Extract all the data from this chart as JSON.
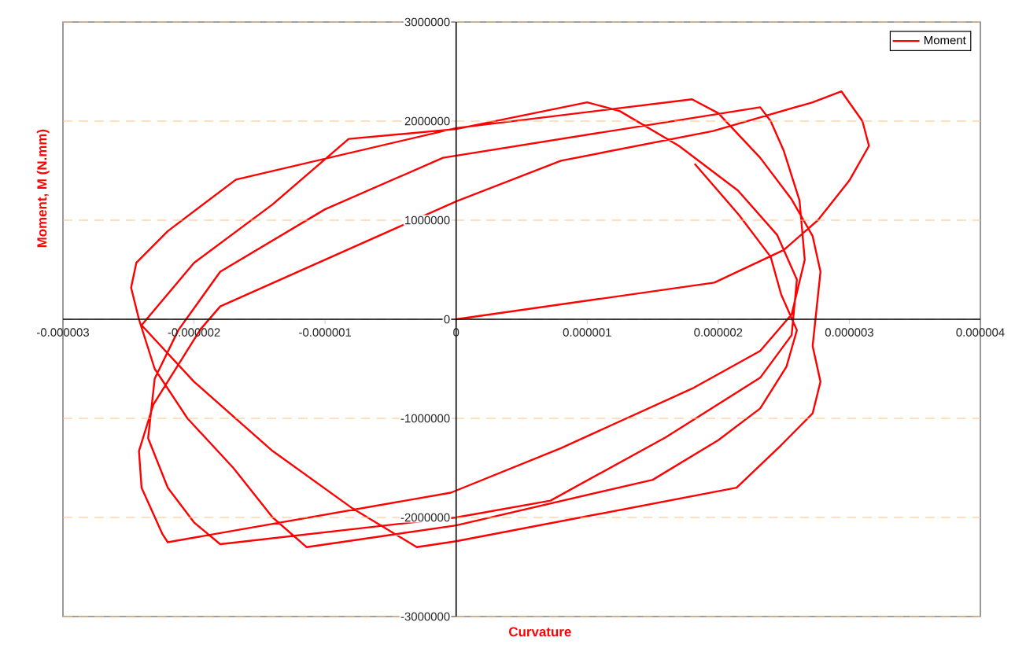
{
  "chart_data": {
    "type": "line",
    "xlabel": "Curvature",
    "ylabel": "Moment, M (N.mm)",
    "xlim": [
      -3e-06,
      4e-06
    ],
    "ylim": [
      -3000000,
      3000000
    ],
    "xticks": [
      {
        "value": -3e-06,
        "label": "-0.000003"
      },
      {
        "value": -2e-06,
        "label": "-0.000002"
      },
      {
        "value": -1e-06,
        "label": "-0.000001"
      },
      {
        "value": 0,
        "label": "0"
      },
      {
        "value": 1e-06,
        "label": "0.000001"
      },
      {
        "value": 2e-06,
        "label": "0.000002"
      },
      {
        "value": 3e-06,
        "label": "0.000003"
      },
      {
        "value": 4e-06,
        "label": "0.000004"
      }
    ],
    "yticks": [
      -3000000,
      -2000000,
      -1000000,
      0,
      1000000,
      2000000,
      3000000
    ],
    "grid": "y",
    "legend": "top right",
    "marker": "none",
    "line_style": "solid",
    "series": [
      {
        "name": "Moment",
        "color": "#ff0000",
        "x": [
          0,
          1.97e-06,
          2.5e-06,
          2.76e-06,
          3e-06,
          3.15e-06,
          3.1e-06,
          2.94e-06,
          2.72e-06,
          1.96e-06,
          8e-07,
          0,
          -1.8e-06,
          -1.95e-06,
          -2.31e-06,
          -2.42e-06,
          -2.4e-06,
          -2.24e-06,
          -2.2e-06,
          -4e-08,
          8e-07,
          1.8e-06,
          2.32e-06,
          2.56e-06,
          2.66e-06,
          2.62e-06,
          2.5e-06,
          2.4e-06,
          2.32e-06,
          -1e-07,
          -1e-06,
          -1.8e-06,
          -2.12e-06,
          -2.3e-06,
          -2.35e-06,
          -2.2e-06,
          -2e-06,
          -1.8e-06,
          0,
          7.2e-07,
          1.6e-06,
          2.32e-06,
          2.56e-06,
          2.6e-06,
          2.45e-06,
          2.15e-06,
          1.7e-06,
          1.25e-06,
          1e-06,
          0,
          -8.2e-07,
          -1.4e-06,
          -2e-06,
          -2.4e-06,
          -2e-06,
          -1.4e-06,
          -8e-07,
          -3e-07,
          0,
          2.14e-06,
          2.48e-06,
          2.72e-06,
          2.78e-06,
          2.72e-06,
          2.78e-06,
          2.72e-06,
          2.56e-06,
          2.32e-06,
          2e-06,
          1.8e-06,
          0,
          -1.68e-06,
          -2.2e-06,
          -2.44e-06,
          -2.48e-06,
          -2.42e-06,
          -2.3e-06,
          -2.05e-06,
          -1.7e-06,
          -1.4e-06,
          -1.14e-06,
          0,
          1.5e-06,
          2e-06,
          2.32e-06,
          2.52e-06,
          2.6e-06,
          2.48e-06,
          2.4e-06,
          2.16e-06,
          1.82e-06
        ],
        "values": [
          0,
          370000,
          700000,
          1000000,
          1400000,
          1750000,
          2000000,
          2300000,
          2190000,
          1900000,
          1600000,
          1190000,
          130000,
          -100000,
          -860000,
          -1330000,
          -1700000,
          -2170000,
          -2250000,
          -1750000,
          -1300000,
          -700000,
          -320000,
          50000,
          600000,
          1200000,
          1700000,
          2000000,
          2140000,
          1630000,
          1110000,
          480000,
          -110000,
          -600000,
          -1200000,
          -1700000,
          -2050000,
          -2270000,
          -2000000,
          -1830000,
          -1190000,
          -590000,
          -160000,
          400000,
          850000,
          1300000,
          1750000,
          2100000,
          2190000,
          1920000,
          1820000,
          1160000,
          570000,
          -60000,
          -630000,
          -1330000,
          -1900000,
          -2300000,
          -2240000,
          -1700000,
          -1270000,
          -950000,
          -630000,
          -270000,
          480000,
          840000,
          1210000,
          1630000,
          2080000,
          2220000,
          1930000,
          1410000,
          890000,
          570000,
          320000,
          0,
          -500000,
          -1000000,
          -1500000,
          -2000000,
          -2300000,
          -2080000,
          -1620000,
          -1220000,
          -900000,
          -480000,
          -110000,
          250000,
          630000,
          1050000,
          1570000
        ]
      }
    ]
  }
}
